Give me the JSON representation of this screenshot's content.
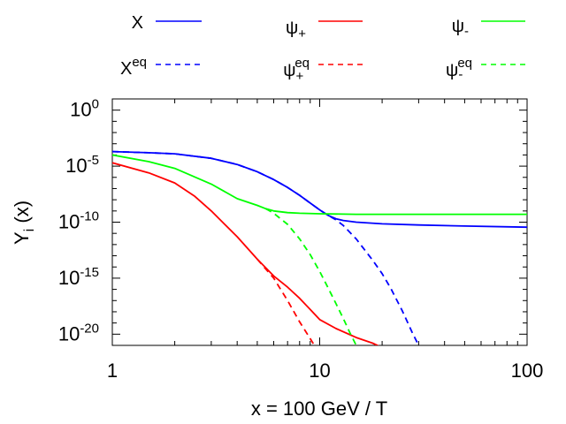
{
  "chart_data": {
    "type": "line",
    "title": "",
    "xlabel": "x = 100 GeV / T",
    "ylabel_main": "Y",
    "ylabel_sub": "i",
    "ylabel_tail": " (x)",
    "xscale": "log",
    "yscale": "log",
    "xlim": [
      1,
      100
    ],
    "ylim_log10": [
      -21,
      1
    ],
    "x_ticks": [
      {
        "value": 1,
        "label": "1"
      },
      {
        "value": 10,
        "label": "10"
      },
      {
        "value": 100,
        "label": "100"
      }
    ],
    "y_ticks": [
      {
        "value": 0,
        "base": "10",
        "exp": "0"
      },
      {
        "value": -5,
        "base": "10",
        "exp": "-5"
      },
      {
        "value": -10,
        "base": "10",
        "exp": "-10"
      },
      {
        "value": -15,
        "base": "10",
        "exp": "-15"
      },
      {
        "value": -20,
        "base": "10",
        "exp": "-20"
      }
    ],
    "legend_position": "top, three columns",
    "series": [
      {
        "id": "X",
        "base": "X",
        "sub": "",
        "sup": "",
        "color": "#0000ff",
        "dash": "solid",
        "x": [
          1,
          1.5,
          2,
          3,
          4,
          5,
          6,
          7,
          8,
          9,
          10,
          11,
          12,
          13,
          15,
          20,
          30,
          50,
          100
        ],
        "log10y": [
          -3.7,
          -3.8,
          -3.9,
          -4.3,
          -4.85,
          -5.5,
          -6.2,
          -6.9,
          -7.6,
          -8.3,
          -8.9,
          -9.4,
          -9.7,
          -9.85,
          -10.0,
          -10.15,
          -10.25,
          -10.35,
          -10.45
        ]
      },
      {
        "id": "Xeq",
        "base": "X",
        "sub": "",
        "sup": "eq",
        "color": "#0000ff",
        "dash": "dashed",
        "x": [
          1,
          1.5,
          2,
          3,
          4,
          5,
          6,
          7,
          8,
          9,
          10,
          11,
          12,
          13,
          15,
          18,
          20,
          22,
          25,
          28,
          30
        ],
        "log10y": [
          -3.7,
          -3.8,
          -3.9,
          -4.3,
          -4.85,
          -5.5,
          -6.2,
          -6.9,
          -7.6,
          -8.3,
          -8.9,
          -9.4,
          -9.8,
          -10.3,
          -11.5,
          -13.4,
          -14.6,
          -15.9,
          -17.9,
          -19.9,
          -21
        ]
      },
      {
        "id": "psi_plus",
        "base": "ψ",
        "sub": "+",
        "sup": "",
        "color": "#ff0000",
        "dash": "solid",
        "x": [
          1,
          1.5,
          2,
          2.5,
          3,
          4,
          5,
          6,
          7,
          8,
          9,
          10,
          12,
          15,
          18,
          20
        ],
        "log10y": [
          -4.7,
          -5.6,
          -6.5,
          -7.7,
          -9.0,
          -11.3,
          -13.3,
          -14.8,
          -15.8,
          -16.8,
          -17.8,
          -18.7,
          -19.5,
          -20.3,
          -20.8,
          -21.2
        ]
      },
      {
        "id": "psi_plus_eq",
        "base": "ψ",
        "sub": "+",
        "sup": "eq",
        "color": "#ff0000",
        "dash": "dashed",
        "x": [
          5,
          6,
          7,
          8,
          9,
          9.5,
          10
        ],
        "log10y": [
          -13.3,
          -15.0,
          -17.0,
          -18.9,
          -20.4,
          -21.1,
          -21.6
        ]
      },
      {
        "id": "psi_minus",
        "base": "ψ",
        "sub": "-",
        "sup": "",
        "color": "#00ff00",
        "dash": "solid",
        "x": [
          1,
          1.5,
          2,
          3,
          4,
          5,
          5.5,
          6,
          7,
          8,
          10,
          15,
          20,
          30,
          50,
          100
        ],
        "log10y": [
          -4.0,
          -4.6,
          -5.2,
          -6.6,
          -7.9,
          -8.5,
          -8.8,
          -9.0,
          -9.15,
          -9.2,
          -9.25,
          -9.3,
          -9.3,
          -9.3,
          -9.3,
          -9.3
        ]
      },
      {
        "id": "psi_minus_eq",
        "base": "ψ",
        "sub": "-",
        "sup": "eq",
        "color": "#00ff00",
        "dash": "dashed",
        "x": [
          5.5,
          6,
          7,
          8,
          9,
          10,
          11,
          12,
          13,
          14,
          15,
          16
        ],
        "log10y": [
          -8.8,
          -9.2,
          -10.2,
          -11.5,
          -12.9,
          -14.4,
          -15.9,
          -17.3,
          -18.6,
          -19.9,
          -21.0,
          -21.8
        ]
      }
    ]
  }
}
